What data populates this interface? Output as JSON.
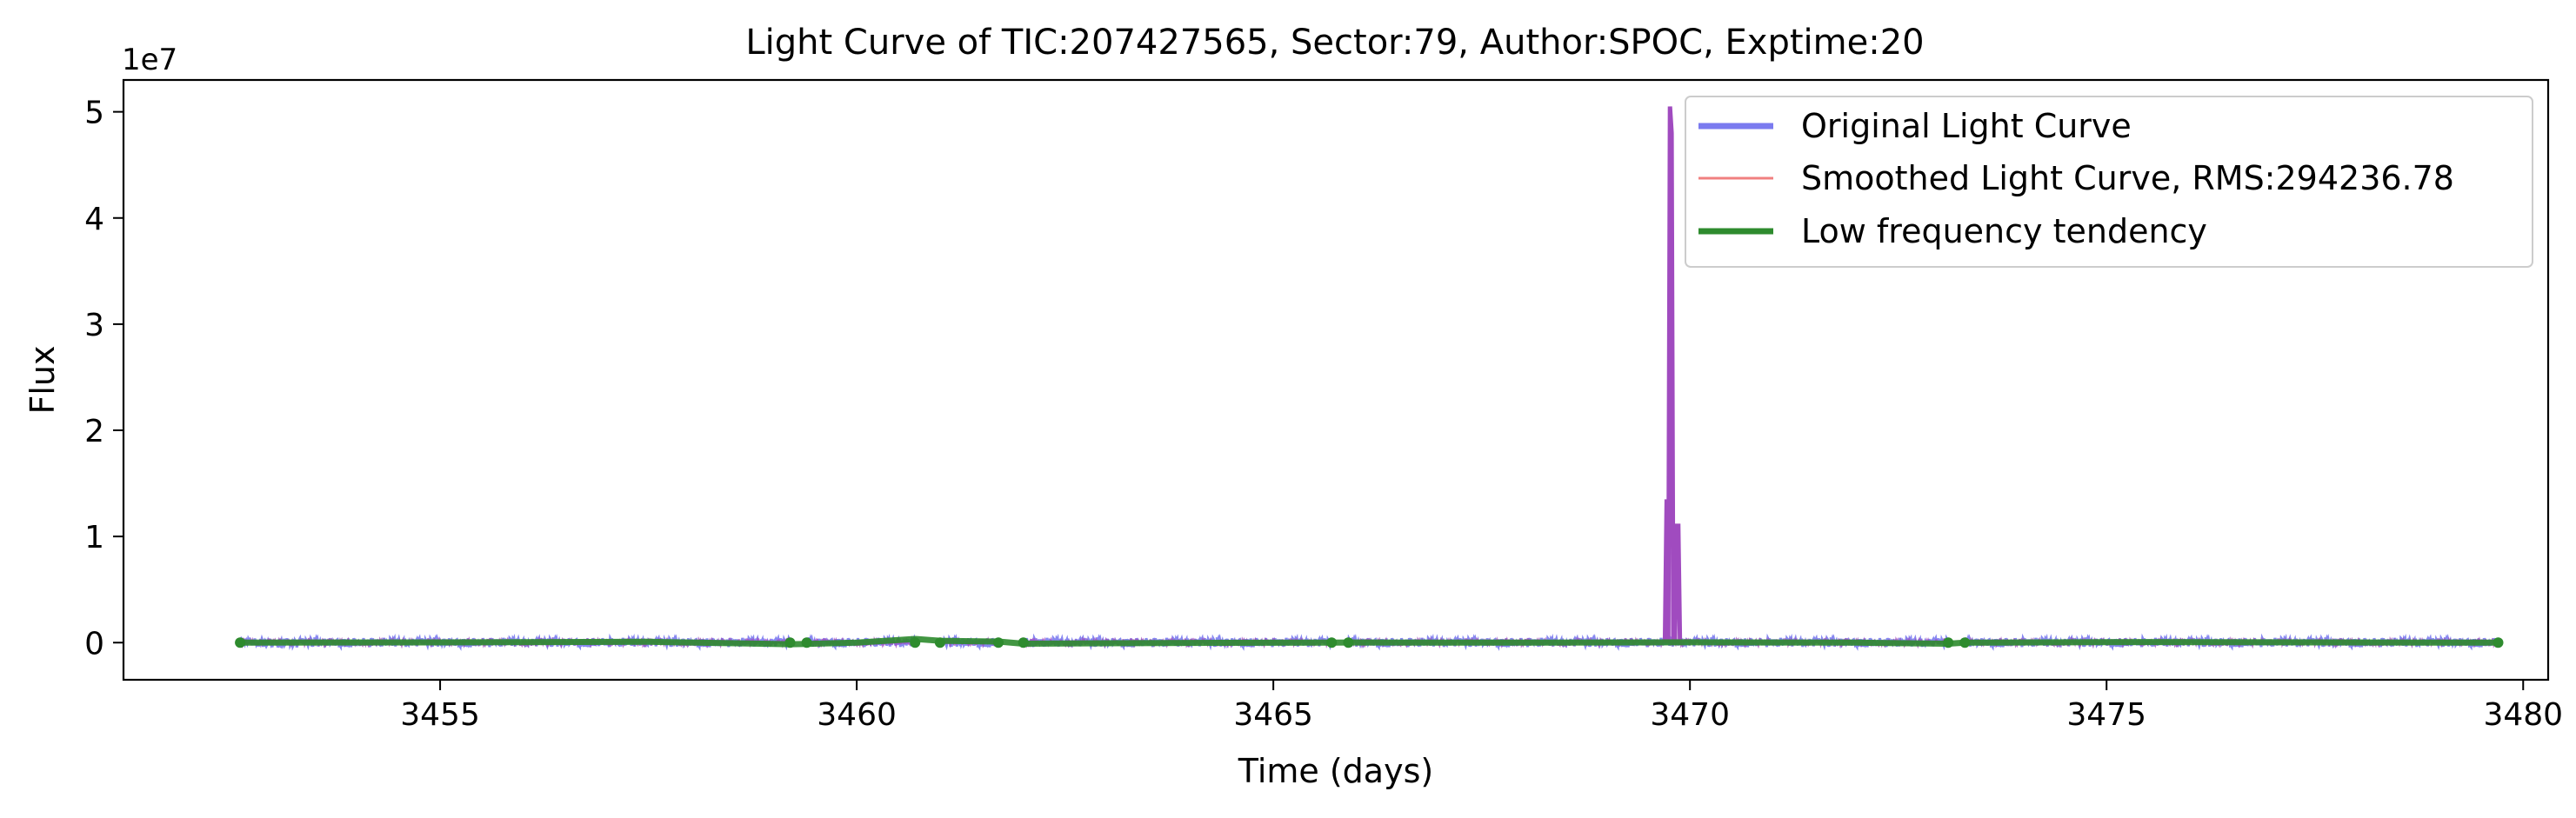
{
  "chart_data": {
    "type": "line",
    "title": "Light Curve of TIC:207427565, Sector:79, Author:SPOC, Exptime:20",
    "xlabel": "Time (days)",
    "ylabel": "Flux",
    "y_multiplier_label": "1e7",
    "xlim": [
      3451.2,
      3480.3
    ],
    "ylim": [
      -3500000,
      53000000
    ],
    "x_ticks": [
      3455,
      3460,
      3465,
      3470,
      3475,
      3480
    ],
    "x_tick_labels": [
      "3455",
      "3460",
      "3465",
      "3470",
      "3475",
      "3480"
    ],
    "y_ticks": [
      0,
      10000000,
      20000000,
      30000000,
      40000000,
      50000000
    ],
    "y_tick_labels": [
      "0",
      "1",
      "2",
      "3",
      "4",
      "5"
    ],
    "grid": false,
    "legend_position": "top-right",
    "legend": [
      "Original Light Curve",
      "Smoothed Light Curve, RMS:294236.78",
      "Low frequency tendency"
    ],
    "colors": {
      "original": "#7b7bef",
      "smoothed": "#f08080",
      "tendency": "#2e8b2e",
      "mix": "#a04bbf"
    },
    "data_segments": [
      [
        3452.6,
        3459.2
      ],
      [
        3459.4,
        3460.7
      ],
      [
        3461.0,
        3461.7
      ],
      [
        3462.0,
        3465.7
      ],
      [
        3465.9,
        3473.1
      ],
      [
        3473.3,
        3479.7
      ]
    ],
    "noise_amplitude": 420000,
    "flare": {
      "x": [
        3469.7,
        3469.72,
        3469.74,
        3469.76,
        3469.78,
        3469.8,
        3469.82,
        3469.84,
        3469.86,
        3469.88,
        3469.9
      ],
      "y": [
        0,
        13500000,
        0,
        50500000,
        48000000,
        0,
        0,
        11000000,
        11000000,
        0,
        0
      ]
    },
    "series": [
      {
        "name": "Low frequency tendency",
        "x": [
          3452.6,
          3455.0,
          3457.5,
          3459.2,
          3459.4,
          3460.0,
          3460.7,
          3461.0,
          3461.7,
          3462.0,
          3464.0,
          3465.7,
          3465.9,
          3468.0,
          3470.0,
          3472.0,
          3473.1,
          3473.3,
          3475.5,
          3477.5,
          3479.7
        ],
        "y": [
          0,
          20000,
          80000,
          -150000,
          -120000,
          0,
          350000,
          180000,
          100000,
          -100000,
          -30000,
          0,
          10000,
          0,
          30000,
          0,
          -100000,
          0,
          50000,
          20000,
          0
        ]
      }
    ]
  }
}
